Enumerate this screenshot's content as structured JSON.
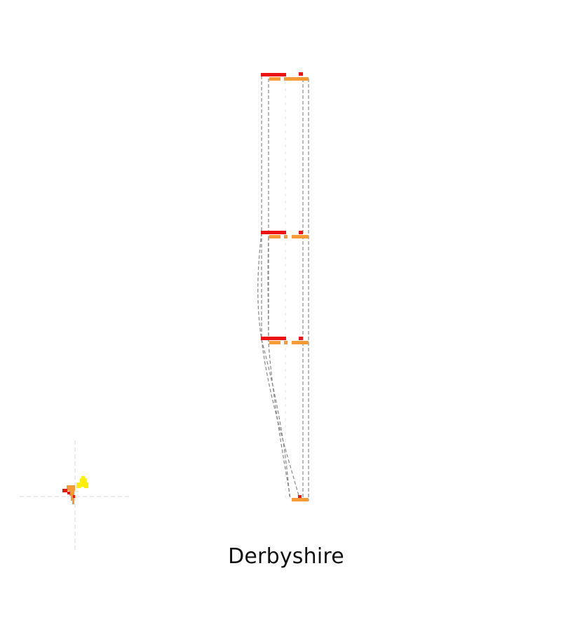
{
  "title": "Derbyshire",
  "colors": {
    "background": "#ffffff",
    "guide": "#d9d9d9",
    "link": "#888888",
    "red": "#ee1111",
    "orange": "#f59a35",
    "yellow": "#ffef00",
    "dark_orange": "#e06a10"
  }
}
